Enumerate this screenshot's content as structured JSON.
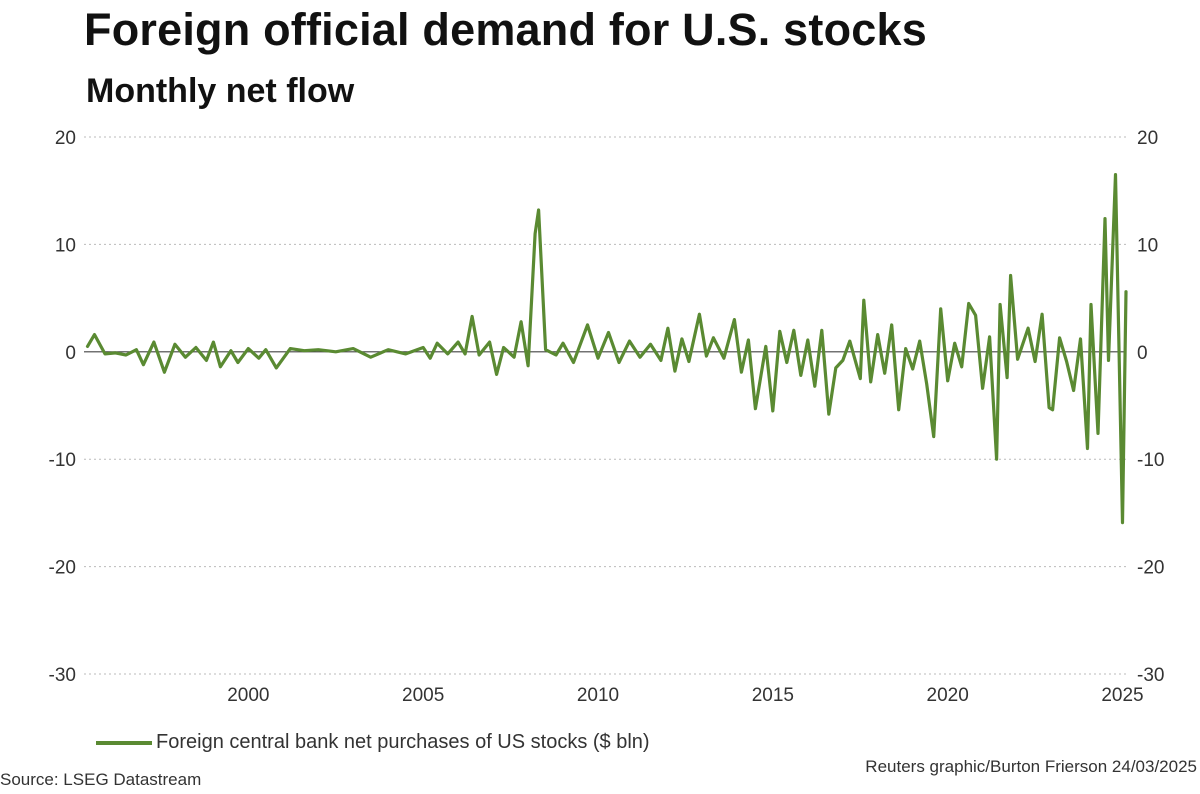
{
  "header": {
    "title": "Foreign official demand for U.S. stocks",
    "subtitle": "Monthly net flow"
  },
  "legend": {
    "label": "Foreign central bank net purchases of US stocks ($ bln)"
  },
  "footer": {
    "source": "Source: LSEG Datastream",
    "credit": "Reuters graphic/Burton Frierson 24/03/2025"
  },
  "colors": {
    "series": "#5a8a32",
    "grid": "#bbbbbb",
    "zero_line": "#444444",
    "text": "#333333"
  },
  "chart_data": {
    "type": "line",
    "title": "Foreign official demand for U.S. stocks",
    "subtitle": "Monthly net flow",
    "xlabel": "",
    "ylabel": "",
    "xlim": [
      1995.3,
      2025.1
    ],
    "ylim": [
      -30,
      20
    ],
    "x_ticks": [
      2000,
      2005,
      2010,
      2015,
      2020,
      2025
    ],
    "y_ticks": [
      20,
      10,
      0,
      -10,
      -20,
      -30
    ],
    "grid": true,
    "dual_y_axis": true,
    "legend_position": "bottom-left",
    "series": [
      {
        "name": "Foreign central bank net purchases of US stocks ($ bln)",
        "points": [
          [
            1995.4,
            0.5
          ],
          [
            1995.6,
            1.6
          ],
          [
            1995.9,
            -0.2
          ],
          [
            1996.2,
            -0.1
          ],
          [
            1996.5,
            -0.3
          ],
          [
            1996.8,
            0.2
          ],
          [
            1997.0,
            -1.2
          ],
          [
            1997.3,
            0.9
          ],
          [
            1997.6,
            -1.9
          ],
          [
            1997.9,
            0.7
          ],
          [
            1998.2,
            -0.5
          ],
          [
            1998.5,
            0.4
          ],
          [
            1998.8,
            -0.8
          ],
          [
            1999.0,
            0.9
          ],
          [
            1999.2,
            -1.4
          ],
          [
            1999.5,
            0.1
          ],
          [
            1999.7,
            -1.0
          ],
          [
            2000.0,
            0.3
          ],
          [
            2000.3,
            -0.6
          ],
          [
            2000.5,
            0.2
          ],
          [
            2000.8,
            -1.5
          ],
          [
            2001.2,
            0.3
          ],
          [
            2001.6,
            0.1
          ],
          [
            2002.0,
            0.2
          ],
          [
            2002.5,
            0.0
          ],
          [
            2003.0,
            0.3
          ],
          [
            2003.5,
            -0.5
          ],
          [
            2004.0,
            0.2
          ],
          [
            2004.5,
            -0.2
          ],
          [
            2005.0,
            0.4
          ],
          [
            2005.2,
            -0.6
          ],
          [
            2005.4,
            0.8
          ],
          [
            2005.7,
            -0.2
          ],
          [
            2006.0,
            0.9
          ],
          [
            2006.2,
            -0.2
          ],
          [
            2006.4,
            3.3
          ],
          [
            2006.6,
            -0.3
          ],
          [
            2006.9,
            0.9
          ],
          [
            2007.1,
            -2.1
          ],
          [
            2007.3,
            0.4
          ],
          [
            2007.6,
            -0.5
          ],
          [
            2007.8,
            2.8
          ],
          [
            2008.0,
            -1.3
          ],
          [
            2008.2,
            11.0
          ],
          [
            2008.3,
            13.2
          ],
          [
            2008.5,
            0.2
          ],
          [
            2008.8,
            -0.3
          ],
          [
            2009.0,
            0.8
          ],
          [
            2009.3,
            -1.0
          ],
          [
            2009.7,
            2.5
          ],
          [
            2010.0,
            -0.6
          ],
          [
            2010.3,
            1.8
          ],
          [
            2010.6,
            -1.0
          ],
          [
            2010.9,
            1.0
          ],
          [
            2011.2,
            -0.5
          ],
          [
            2011.5,
            0.7
          ],
          [
            2011.8,
            -0.8
          ],
          [
            2012.0,
            2.2
          ],
          [
            2012.2,
            -1.8
          ],
          [
            2012.4,
            1.2
          ],
          [
            2012.6,
            -0.9
          ],
          [
            2012.9,
            3.5
          ],
          [
            2013.1,
            -0.4
          ],
          [
            2013.3,
            1.3
          ],
          [
            2013.6,
            -0.6
          ],
          [
            2013.9,
            3.0
          ],
          [
            2014.1,
            -1.9
          ],
          [
            2014.3,
            1.1
          ],
          [
            2014.5,
            -5.3
          ],
          [
            2014.8,
            0.5
          ],
          [
            2015.0,
            -5.5
          ],
          [
            2015.2,
            1.9
          ],
          [
            2015.4,
            -1.0
          ],
          [
            2015.6,
            2.0
          ],
          [
            2015.8,
            -2.2
          ],
          [
            2016.0,
            1.1
          ],
          [
            2016.2,
            -3.2
          ],
          [
            2016.4,
            2.0
          ],
          [
            2016.6,
            -5.8
          ],
          [
            2016.8,
            -1.5
          ],
          [
            2017.0,
            -0.8
          ],
          [
            2017.2,
            1.0
          ],
          [
            2017.5,
            -2.5
          ],
          [
            2017.6,
            4.8
          ],
          [
            2017.8,
            -2.8
          ],
          [
            2018.0,
            1.6
          ],
          [
            2018.2,
            -2.0
          ],
          [
            2018.4,
            2.5
          ],
          [
            2018.6,
            -5.4
          ],
          [
            2018.8,
            0.3
          ],
          [
            2019.0,
            -1.6
          ],
          [
            2019.2,
            1.0
          ],
          [
            2019.4,
            -3.0
          ],
          [
            2019.6,
            -7.9
          ],
          [
            2019.8,
            4.0
          ],
          [
            2020.0,
            -2.7
          ],
          [
            2020.2,
            0.8
          ],
          [
            2020.4,
            -1.4
          ],
          [
            2020.6,
            4.5
          ],
          [
            2020.8,
            3.4
          ],
          [
            2021.0,
            -3.4
          ],
          [
            2021.2,
            1.4
          ],
          [
            2021.4,
            -10.0
          ],
          [
            2021.5,
            4.4
          ],
          [
            2021.7,
            -2.4
          ],
          [
            2021.8,
            7.1
          ],
          [
            2022.0,
            -0.7
          ],
          [
            2022.3,
            2.2
          ],
          [
            2022.5,
            -0.9
          ],
          [
            2022.7,
            3.5
          ],
          [
            2022.9,
            -5.2
          ],
          [
            2023.0,
            -5.4
          ],
          [
            2023.2,
            1.3
          ],
          [
            2023.4,
            -0.9
          ],
          [
            2023.6,
            -3.6
          ],
          [
            2023.8,
            1.2
          ],
          [
            2024.0,
            -9.0
          ],
          [
            2024.1,
            4.4
          ],
          [
            2024.3,
            -7.6
          ],
          [
            2024.5,
            12.4
          ],
          [
            2024.6,
            -0.8
          ],
          [
            2024.8,
            16.5
          ],
          [
            2025.0,
            -15.9
          ],
          [
            2025.1,
            5.6
          ]
        ]
      }
    ]
  }
}
